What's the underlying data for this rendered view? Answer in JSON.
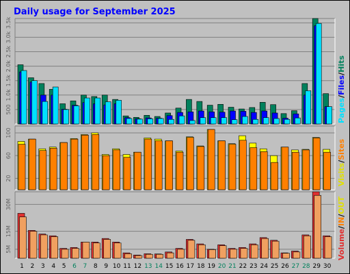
{
  "title": "Daily usage for September 2025",
  "colors": {
    "background": "#C0C0C0",
    "title": "#0000FF",
    "hits": "#00805C",
    "files": "#0000FF",
    "pages": "#00E0FF",
    "visits": "#FFFF00",
    "sites": "#FF8000",
    "in": "#FF8000",
    "out": "#FFFF00",
    "volume_kb": "#E03030",
    "volume_light": "#F0A060",
    "weekend_label": "#00805C",
    "weekday_label": "#000000"
  },
  "chart_data": [
    {
      "type": "bar",
      "name": "Pages / Files / Hits",
      "legend": {
        "pages": "Pages",
        "files": "Files",
        "hits": "Hits"
      },
      "categories": [
        "1",
        "2",
        "3",
        "4",
        "5",
        "6",
        "7",
        "8",
        "9",
        "10",
        "11",
        "12",
        "13",
        "14",
        "15",
        "16",
        "17",
        "18",
        "19",
        "20",
        "21",
        "22",
        "23",
        "24",
        "25",
        "26",
        "27",
        "28",
        "29",
        "30"
      ],
      "weekend": [
        6,
        7,
        13,
        14,
        20,
        21,
        27,
        28
      ],
      "ylim": [
        0,
        3650
      ],
      "yticks": [
        500,
        1000,
        1500,
        2000,
        2500,
        3000,
        3500
      ],
      "ytick_labels": [
        "500",
        "1.0k",
        "1.5k",
        "2.0k",
        "2.5k",
        "3.0k",
        "3.5k"
      ],
      "series": [
        {
          "name": "Hits",
          "values": [
            2050,
            1600,
            1400,
            1200,
            700,
            800,
            1000,
            950,
            1000,
            850,
            280,
            230,
            300,
            260,
            380,
            550,
            850,
            780,
            650,
            680,
            580,
            520,
            570,
            750,
            670,
            360,
            460,
            1400,
            3650,
            1050
          ]
        },
        {
          "name": "Files",
          "values": [
            1800,
            1450,
            1000,
            1000,
            510,
            650,
            740,
            700,
            660,
            700,
            220,
            180,
            210,
            200,
            290,
            400,
            420,
            450,
            420,
            410,
            450,
            440,
            400,
            450,
            380,
            200,
            350,
            1000,
            3400,
            600
          ]
        },
        {
          "name": "Pages",
          "values": [
            1850,
            1500,
            780,
            1280,
            500,
            630,
            900,
            900,
            770,
            820,
            190,
            170,
            180,
            190,
            160,
            280,
            120,
            220,
            220,
            220,
            150,
            260,
            160,
            220,
            190,
            160,
            210,
            1150,
            3480,
            600
          ]
        }
      ]
    },
    {
      "type": "bar",
      "name": "Visits / Sites",
      "legend": {
        "visits": "Visits",
        "sites": "Sites"
      },
      "categories": [
        "1",
        "2",
        "3",
        "4",
        "5",
        "6",
        "7",
        "8",
        "9",
        "10",
        "11",
        "12",
        "13",
        "14",
        "15",
        "16",
        "17",
        "18",
        "19",
        "20",
        "21",
        "22",
        "23",
        "24",
        "25",
        "26",
        "27",
        "28",
        "29",
        "30"
      ],
      "ylim": [
        0,
        112
      ],
      "yticks": [
        20,
        60,
        100
      ],
      "ytick_labels": [
        "20",
        "60",
        "100"
      ],
      "series": [
        {
          "name": "Visits",
          "values": [
            85,
            89,
            72,
            75,
            83,
            90,
            97,
            100,
            62,
            72,
            62,
            66,
            91,
            89,
            86,
            68,
            93,
            77,
            106,
            86,
            81,
            95,
            82,
            72,
            60,
            75,
            70,
            71,
            92,
            71
          ]
        },
        {
          "name": "Sites",
          "values": [
            80,
            89,
            69,
            73,
            83,
            89,
            96,
            97,
            60,
            70,
            57,
            66,
            89,
            86,
            86,
            66,
            92,
            76,
            106,
            86,
            80,
            87,
            74,
            67,
            48,
            75,
            66,
            70,
            91,
            66
          ]
        }
      ]
    },
    {
      "type": "bar",
      "name": "Volume / IN / OUT",
      "legend": {
        "volume": "Volume",
        "in": "IN",
        "out": "OUT"
      },
      "categories": [
        "1",
        "2",
        "3",
        "4",
        "5",
        "6",
        "7",
        "8",
        "9",
        "10",
        "11",
        "12",
        "13",
        "14",
        "15",
        "16",
        "17",
        "18",
        "19",
        "20",
        "21",
        "22",
        "23",
        "24",
        "25",
        "26",
        "27",
        "28",
        "29",
        "30"
      ],
      "ylim": [
        0,
        37
      ],
      "yticks": [
        5,
        15,
        30
      ],
      "ytick_labels": [
        "5M",
        "15M",
        "30M"
      ],
      "series": [
        {
          "name": "Volume",
          "values": [
            25,
            15.5,
            13.5,
            12.5,
            5.5,
            6,
            9,
            9,
            11,
            9,
            3,
            1.8,
            2.5,
            2.4,
            3.5,
            5.5,
            10.5,
            8,
            5,
            7.5,
            5.5,
            6,
            8,
            11.5,
            10,
            3,
            4,
            13,
            37,
            12.5
          ]
        },
        {
          "name": "OUT",
          "values": [
            23,
            15,
            13,
            12,
            5,
            5.5,
            9,
            8.5,
            10.5,
            8.5,
            2.5,
            1.5,
            2.2,
            2.2,
            3,
            5,
            10,
            7.5,
            4.8,
            7,
            5,
            5.5,
            7.5,
            11,
            9.5,
            2.8,
            3.5,
            12.5,
            35,
            12
          ]
        }
      ]
    }
  ]
}
